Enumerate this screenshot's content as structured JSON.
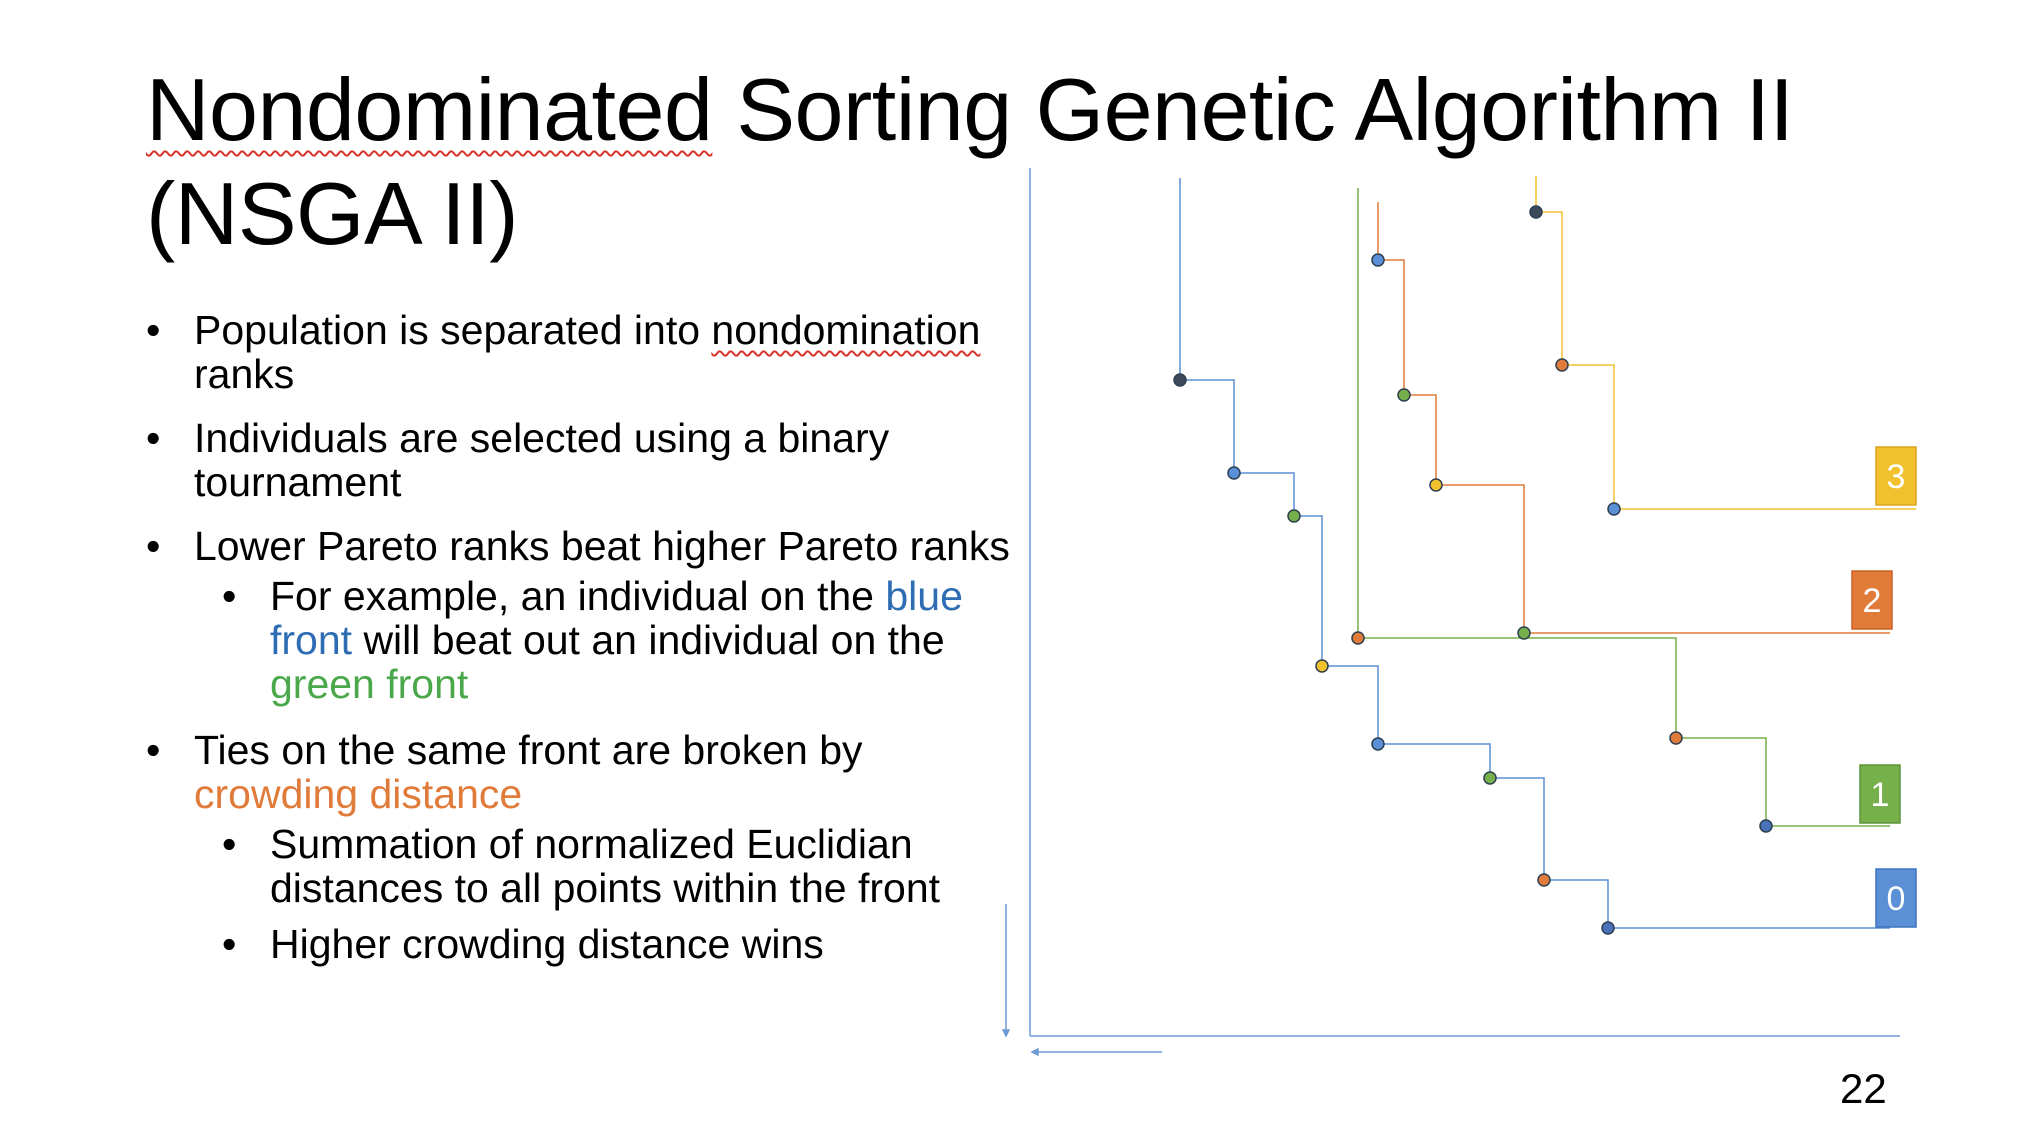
{
  "slide": {
    "title_part1": "Nondominated",
    "title_part2": " Sorting Genetic Algorithm II (NSGA II)",
    "page_number": "22"
  },
  "bullets": {
    "b1_line": "Population is separated into ",
    "b1_squiggle": "nondomination",
    "b1_rest": " ranks",
    "b2": "Individuals are selected using a binary tournament",
    "b3": "Lower Pareto ranks beat higher Pareto ranks",
    "b3_sub_part1": "For example, an individual on the ",
    "b3_sub_blue": "blue front",
    "b3_sub_part2": " will beat out an individual on the ",
    "b3_sub_green": "green front",
    "b4_part1": "Ties on the same front are broken by ",
    "b4_orange": "crowding distance",
    "b4_sub1": "Summation of normalized Euclidian distances to all points within the front",
    "b4_sub2": "Higher crowding distance wins"
  },
  "diagram": {
    "colors": {
      "front0": "#5b8fd6",
      "front1": "#76b04b",
      "front2": "#e07b39",
      "front3": "#f2c12e",
      "axis": "#6d9bd4",
      "dark_point": "#3d4a5c"
    },
    "fronts": [
      {
        "label": "0",
        "color": "#5b8fd6"
      },
      {
        "label": "1",
        "color": "#76b04b"
      },
      {
        "label": "2",
        "color": "#e07b39"
      },
      {
        "label": "3",
        "color": "#f2c12e"
      }
    ]
  }
}
